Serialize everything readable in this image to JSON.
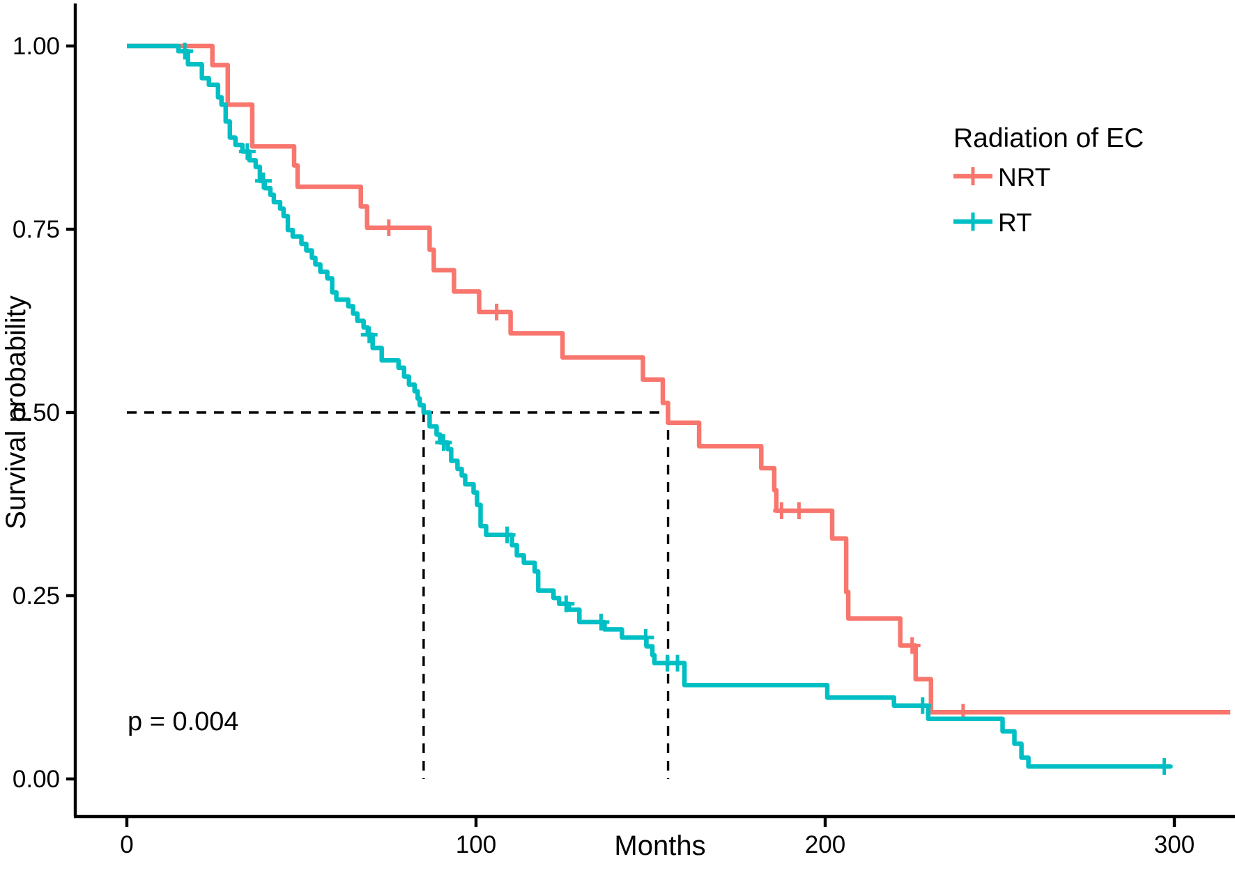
{
  "figure": {
    "kind": "kaplan-meier-survival-plot"
  },
  "y_axis": {
    "label": "Survival probability",
    "ticks": [
      "1.00",
      "0.75",
      "0.50",
      "0.25",
      "0.00"
    ],
    "tick_values": [
      1.0,
      0.75,
      0.5,
      0.25,
      0.0
    ]
  },
  "x_axis": {
    "label": "Months",
    "ticks": [
      "0",
      "100",
      "200",
      "300"
    ],
    "tick_values": [
      0,
      100,
      200,
      300
    ]
  },
  "annotation": {
    "p_value": "p = 0.004"
  },
  "legend": {
    "title": "Radiation of EC",
    "position": "right-top",
    "entries": [
      {
        "label": "NRT",
        "color": "#F8766D"
      },
      {
        "label": "RT",
        "color": "#00BFC4"
      }
    ]
  },
  "chart_data": {
    "type": "line",
    "subtype": "kaplan-meier-step",
    "title": "",
    "xlabel": "Months",
    "ylabel": "Survival probability",
    "xlim": [
      0,
      317
    ],
    "ylim": [
      0,
      1
    ],
    "x_ticks": [
      0,
      100,
      200,
      300
    ],
    "y_ticks": [
      1.0,
      0.75,
      0.5,
      0.25,
      0.0
    ],
    "grid": false,
    "legend_position": "right-top",
    "p_value_text": "p = 0.004",
    "median_line": {
      "y": 0.5,
      "medians": [
        {
          "series": "NRT",
          "t": 155
        },
        {
          "series": "RT",
          "t": 85
        }
      ]
    },
    "series": [
      {
        "name": "NRT",
        "color": "#F8766D",
        "start_survival": 1.0,
        "end_time": 316,
        "steps": [
          [
            24.5,
            0.974
          ],
          [
            28.9,
            0.92
          ],
          [
            35.9,
            0.863
          ],
          [
            47.9,
            0.837
          ],
          [
            48.9,
            0.808
          ],
          [
            67,
            0.781
          ],
          [
            68.8,
            0.752
          ],
          [
            86.7,
            0.722
          ],
          [
            87.9,
            0.694
          ],
          [
            93.7,
            0.665
          ],
          [
            100.9,
            0.637
          ],
          [
            109.9,
            0.608
          ],
          [
            124.8,
            0.575
          ],
          [
            147.8,
            0.545
          ],
          [
            153.5,
            0.513
          ],
          [
            155,
            0.486
          ],
          [
            163.9,
            0.454
          ],
          [
            181.7,
            0.424
          ],
          [
            185.4,
            0.394
          ],
          [
            186,
            0.366
          ],
          [
            202,
            0.328
          ],
          [
            206,
            0.255
          ],
          [
            206.6,
            0.219
          ],
          [
            221.5,
            0.182
          ],
          [
            225.9,
            0.136
          ],
          [
            230.3,
            0.091
          ]
        ],
        "censors": [
          [
            75,
            0.752
          ],
          [
            105.9,
            0.637
          ],
          [
            187.5,
            0.366
          ],
          [
            192.5,
            0.366
          ],
          [
            224.9,
            0.182
          ],
          [
            239.5,
            0.091
          ]
        ]
      },
      {
        "name": "RT",
        "color": "#00BFC4",
        "start_survival": 1.0,
        "end_time": 299,
        "steps": [
          [
            14.8,
            0.993
          ],
          [
            17.5,
            0.975
          ],
          [
            21.5,
            0.956
          ],
          [
            23.5,
            0.947
          ],
          [
            26.1,
            0.93
          ],
          [
            27.1,
            0.92
          ],
          [
            28.3,
            0.897
          ],
          [
            29.5,
            0.875
          ],
          [
            31.1,
            0.865
          ],
          [
            33.1,
            0.856
          ],
          [
            35.1,
            0.844
          ],
          [
            36.9,
            0.835
          ],
          [
            38.1,
            0.816
          ],
          [
            39.5,
            0.806
          ],
          [
            41.1,
            0.797
          ],
          [
            42.1,
            0.787
          ],
          [
            43.9,
            0.778
          ],
          [
            44.9,
            0.768
          ],
          [
            46.1,
            0.749
          ],
          [
            47.5,
            0.74
          ],
          [
            50,
            0.73
          ],
          [
            51.4,
            0.721
          ],
          [
            53,
            0.711
          ],
          [
            54,
            0.702
          ],
          [
            55.4,
            0.692
          ],
          [
            57.4,
            0.683
          ],
          [
            58.8,
            0.664
          ],
          [
            60,
            0.654
          ],
          [
            63.4,
            0.645
          ],
          [
            64.8,
            0.635
          ],
          [
            66,
            0.625
          ],
          [
            67.8,
            0.616
          ],
          [
            69,
            0.606
          ],
          [
            70.4,
            0.588
          ],
          [
            73,
            0.571
          ],
          [
            77.8,
            0.561
          ],
          [
            79.4,
            0.549
          ],
          [
            80.8,
            0.538
          ],
          [
            82.4,
            0.529
          ],
          [
            83.3,
            0.519
          ],
          [
            83.9,
            0.51
          ],
          [
            85,
            0.5
          ],
          [
            86.7,
            0.481
          ],
          [
            88.7,
            0.47
          ],
          [
            89.7,
            0.459
          ],
          [
            91.9,
            0.45
          ],
          [
            92.9,
            0.434
          ],
          [
            94.7,
            0.423
          ],
          [
            95.9,
            0.414
          ],
          [
            96.9,
            0.402
          ],
          [
            99.3,
            0.391
          ],
          [
            100.3,
            0.374
          ],
          [
            101.3,
            0.345
          ],
          [
            102.9,
            0.333
          ],
          [
            110.3,
            0.319
          ],
          [
            111.7,
            0.305
          ],
          [
            113.7,
            0.295
          ],
          [
            116.8,
            0.283
          ],
          [
            117.8,
            0.257
          ],
          [
            122.2,
            0.247
          ],
          [
            123.8,
            0.239
          ],
          [
            126.6,
            0.231
          ],
          [
            129.6,
            0.214
          ],
          [
            136.8,
            0.204
          ],
          [
            141.8,
            0.193
          ],
          [
            148.8,
            0.181
          ],
          [
            150.5,
            0.169
          ],
          [
            151.1,
            0.158
          ],
          [
            159.7,
            0.128
          ],
          [
            200.6,
            0.111
          ],
          [
            219.7,
            0.1
          ],
          [
            229.5,
            0.082
          ],
          [
            250.8,
            0.065
          ],
          [
            254.2,
            0.048
          ],
          [
            256.2,
            0.029
          ],
          [
            258.2,
            0.017
          ]
        ],
        "censors": [
          [
            16.6,
            0.993
          ],
          [
            34.5,
            0.856
          ],
          [
            39.1,
            0.816
          ],
          [
            69.4,
            0.606
          ],
          [
            90.7,
            0.459
          ],
          [
            108.9,
            0.333
          ],
          [
            125.8,
            0.239
          ],
          [
            135.8,
            0.214
          ],
          [
            148.6,
            0.193
          ],
          [
            154.8,
            0.158
          ],
          [
            157.7,
            0.158
          ],
          [
            227.9,
            0.1
          ],
          [
            297.1,
            0.017
          ]
        ]
      }
    ]
  }
}
